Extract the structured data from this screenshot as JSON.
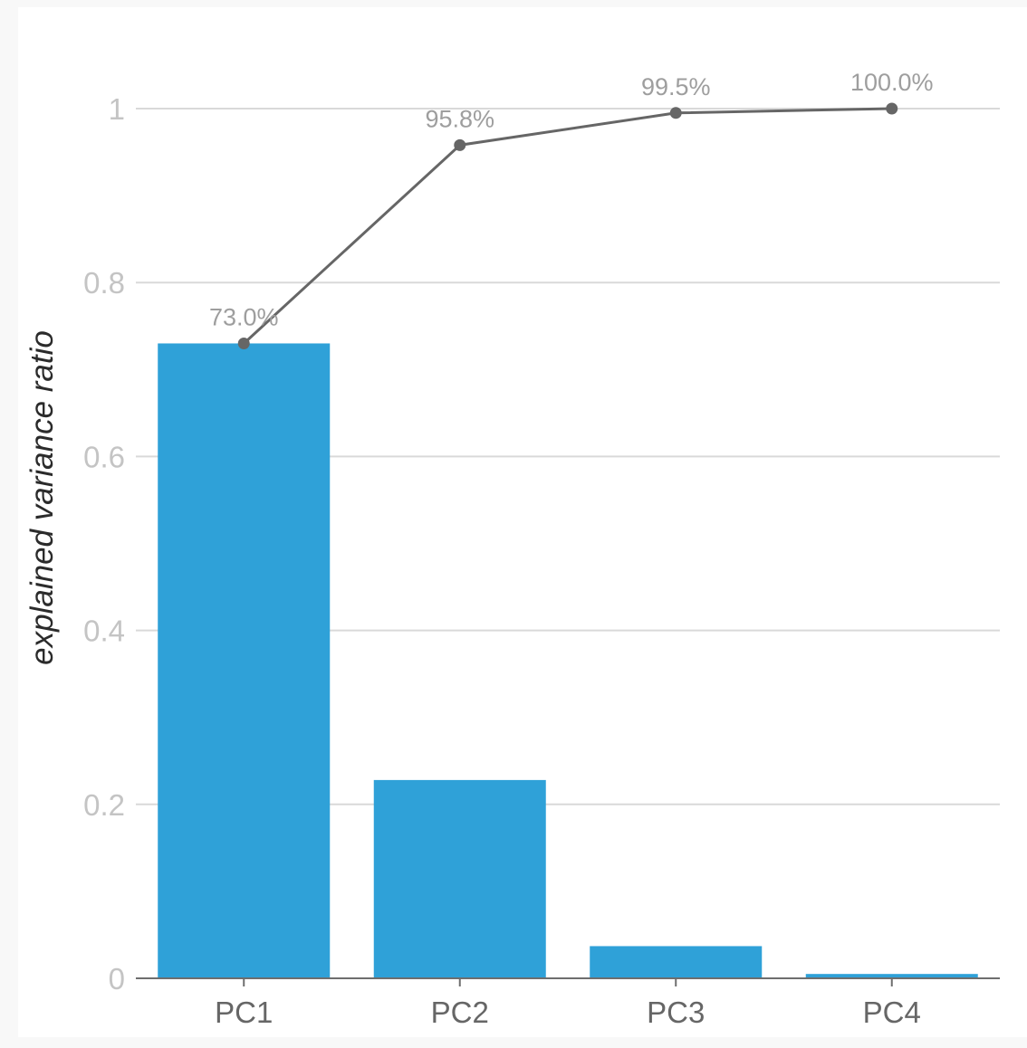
{
  "chart_data": {
    "type": "bar",
    "categories": [
      "PC1",
      "PC2",
      "PC3",
      "PC4"
    ],
    "title": "",
    "xlabel": "",
    "ylabel": "explained variance ratio",
    "ylim": [
      0,
      1.05
    ],
    "yticks": [
      0,
      0.2,
      0.4,
      0.6,
      0.8,
      1
    ],
    "ytick_labels": [
      "0",
      "0.2",
      "0.4",
      "0.6",
      "0.8",
      "1"
    ],
    "grid": true,
    "series": [
      {
        "type": "bar",
        "values": [
          0.73,
          0.228,
          0.037,
          0.005
        ],
        "color": "#2fa1d8"
      },
      {
        "type": "line",
        "values": [
          0.73,
          0.958,
          0.995,
          1.0
        ],
        "labels": [
          "73.0%",
          "95.8%",
          "99.5%",
          "100.0%"
        ],
        "color": "#666666"
      }
    ]
  }
}
